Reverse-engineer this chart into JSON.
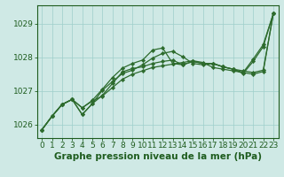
{
  "bg_color": "#cfe9e5",
  "plot_bg_color": "#cfe9e5",
  "grid_color": "#9ecfca",
  "line_color": "#2d6b2d",
  "ylim": [
    1025.6,
    1029.55
  ],
  "xlim": [
    -0.5,
    23.5
  ],
  "yticks": [
    1026,
    1027,
    1028,
    1029
  ],
  "xticks": [
    0,
    1,
    2,
    3,
    4,
    5,
    6,
    7,
    8,
    9,
    10,
    11,
    12,
    13,
    14,
    15,
    16,
    17,
    18,
    19,
    20,
    21,
    22,
    23
  ],
  "series": [
    [
      1025.85,
      1026.25,
      1026.6,
      1026.75,
      1026.5,
      1026.7,
      1026.85,
      1027.1,
      1027.35,
      1027.5,
      1027.6,
      1027.7,
      1027.75,
      1027.8,
      1027.85,
      1027.9,
      1027.85,
      1027.7,
      1027.65,
      1027.6,
      1027.55,
      1027.5,
      1027.58,
      1029.3
    ],
    [
      1025.85,
      1026.25,
      1026.6,
      1026.75,
      1026.5,
      1026.72,
      1027.05,
      1027.4,
      1027.68,
      1027.82,
      1027.92,
      1028.22,
      1028.28,
      1027.82,
      1027.78,
      1027.88,
      1027.82,
      1027.82,
      1027.72,
      1027.65,
      1027.55,
      1027.95,
      1028.38,
      1029.3
    ],
    [
      1025.85,
      1026.25,
      1026.6,
      1026.75,
      1026.3,
      1026.62,
      1026.87,
      1027.22,
      1027.57,
      1027.67,
      1027.72,
      1027.82,
      1027.88,
      1027.92,
      1027.78,
      1027.88,
      1027.82,
      1027.82,
      1027.72,
      1027.65,
      1027.6,
      1027.55,
      1027.62,
      1029.3
    ],
    [
      1025.85,
      1026.25,
      1026.6,
      1026.75,
      1026.3,
      1026.62,
      1027.02,
      1027.28,
      1027.52,
      1027.62,
      1027.78,
      1027.98,
      1028.12,
      1028.18,
      1028.02,
      1027.82,
      1027.78,
      1027.82,
      1027.72,
      1027.65,
      1027.52,
      1027.88,
      1028.32,
      1029.3
    ]
  ],
  "xlabel": "Graphe pression niveau de la mer (hPa)",
  "font_color": "#1e5c1e",
  "tick_font_size": 6.5,
  "label_font_size": 7.5,
  "linewidth": 0.9,
  "markersize": 2.2
}
